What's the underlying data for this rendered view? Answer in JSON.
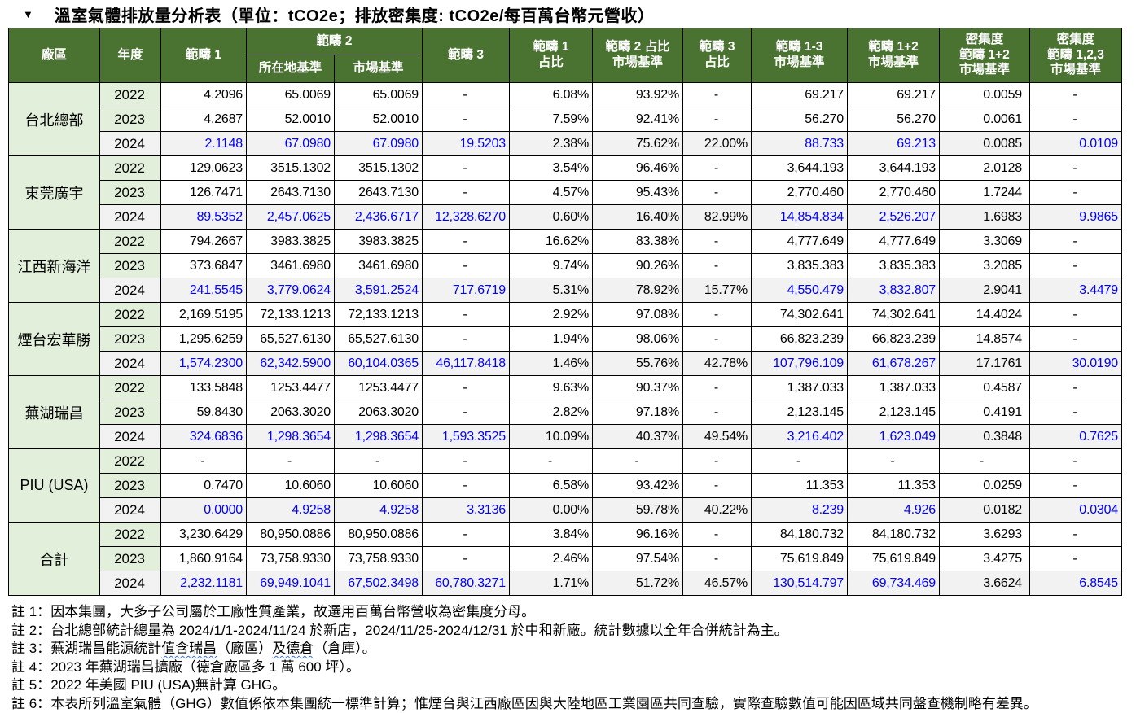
{
  "title": {
    "marker": "▼",
    "text": "溫室氣體排放量分析表（單位：tCO2e；排放密集度: tCO2e/每百萬台幣元營收）"
  },
  "colors": {
    "header_bg": "#4a7230",
    "group_bg": "#e2efda",
    "highlight_row_bg": "#f2f2f2",
    "highlight_text": "#0000ff",
    "border": "#000000"
  },
  "table": {
    "headers": {
      "plant": "廠區",
      "year": "年度",
      "scope1": "範疇 1",
      "scope2": "範疇 2",
      "scope2_location": "所在地基準",
      "scope2_market": "市場基準",
      "scope3": "範疇 3",
      "scope1_pct": "範疇 1\n占比",
      "scope2_pct": "範疇 2 占比\n市場基準",
      "scope3_pct": "範疇 3\n占比",
      "scope123_market": "範疇 1-3\n市場基準",
      "scope12_market": "範疇 1+2\n市場基準",
      "intensity12": "密集度\n範疇 1+2\n市場基準",
      "intensity123": "密集度\n範疇 1,2,3\n市場基準"
    },
    "highlight_cols": [
      0,
      1,
      2,
      3,
      7,
      8,
      10
    ],
    "groups": [
      {
        "plant": "台北總部",
        "rows": [
          {
            "year": "2022",
            "highlight": false,
            "values": [
              "4.2096",
              "65.0069",
              "65.0069",
              "-",
              "6.08%",
              "93.92%",
              "-",
              "69.217",
              "69.217",
              "0.0059",
              "-"
            ]
          },
          {
            "year": "2023",
            "highlight": false,
            "values": [
              "4.2687",
              "52.0010",
              "52.0010",
              "-",
              "7.59%",
              "92.41%",
              "-",
              "56.270",
              "56.270",
              "0.0061",
              "-"
            ]
          },
          {
            "year": "2024",
            "highlight": true,
            "values": [
              "2.1148",
              "67.0980",
              "67.0980",
              "19.5203",
              "2.38%",
              "75.62%",
              "22.00%",
              "88.733",
              "69.213",
              "0.0085",
              "0.0109"
            ]
          }
        ]
      },
      {
        "plant": "東莞廣宇",
        "rows": [
          {
            "year": "2022",
            "highlight": false,
            "values": [
              "129.0623",
              "3515.1302",
              "3515.1302",
              "-",
              "3.54%",
              "96.46%",
              "-",
              "3,644.193",
              "3,644.193",
              "2.0128",
              "-"
            ]
          },
          {
            "year": "2023",
            "highlight": false,
            "values": [
              "126.7471",
              "2643.7130",
              "2643.7130",
              "-",
              "4.57%",
              "95.43%",
              "-",
              "2,770.460",
              "2,770.460",
              "1.7244",
              "-"
            ]
          },
          {
            "year": "2024",
            "highlight": true,
            "values": [
              "89.5352",
              "2,457.0625",
              "2,436.6717",
              "12,328.6270",
              "0.60%",
              "16.40%",
              "82.99%",
              "14,854.834",
              "2,526.207",
              "1.6983",
              "9.9865"
            ]
          }
        ]
      },
      {
        "plant": "江西新海洋",
        "rows": [
          {
            "year": "2022",
            "highlight": false,
            "values": [
              "794.2667",
              "3983.3825",
              "3983.3825",
              "-",
              "16.62%",
              "83.38%",
              "-",
              "4,777.649",
              "4,777.649",
              "3.3069",
              "-"
            ]
          },
          {
            "year": "2023",
            "highlight": false,
            "values": [
              "373.6847",
              "3461.6980",
              "3461.6980",
              "-",
              "9.74%",
              "90.26%",
              "-",
              "3,835.383",
              "3,835.383",
              "3.2085",
              "-"
            ]
          },
          {
            "year": "2024",
            "highlight": true,
            "values": [
              "241.5545",
              "3,779.0624",
              "3,591.2524",
              "717.6719",
              "5.31%",
              "78.92%",
              "15.77%",
              "4,550.479",
              "3,832.807",
              "2.9041",
              "3.4479"
            ]
          }
        ]
      },
      {
        "plant": "煙台宏華勝",
        "rows": [
          {
            "year": "2022",
            "highlight": false,
            "values": [
              "2,169.5195",
              "72,133.1213",
              "72,133.1213",
              "-",
              "2.92%",
              "97.08%",
              "-",
              "74,302.641",
              "74,302.641",
              "14.4024",
              "-"
            ]
          },
          {
            "year": "2023",
            "highlight": false,
            "values": [
              "1,295.6259",
              "65,527.6130",
              "65,527.6130",
              "-",
              "1.94%",
              "98.06%",
              "-",
              "66,823.239",
              "66,823.239",
              "14.8574",
              "-"
            ]
          },
          {
            "year": "2024",
            "highlight": true,
            "values": [
              "1,574.2300",
              "62,342.5900",
              "60,104.0365",
              "46,117.8418",
              "1.46%",
              "55.76%",
              "42.78%",
              "107,796.109",
              "61,678.267",
              "17.1761",
              "30.0190"
            ]
          }
        ]
      },
      {
        "plant": "蕪湖瑞昌",
        "rows": [
          {
            "year": "2022",
            "highlight": false,
            "values": [
              "133.5848",
              "1253.4477",
              "1253.4477",
              "-",
              "9.63%",
              "90.37%",
              "-",
              "1,387.033",
              "1,387.033",
              "0.4587",
              "-"
            ]
          },
          {
            "year": "2023",
            "highlight": false,
            "values": [
              "59.8430",
              "2063.3020",
              "2063.3020",
              "-",
              "2.82%",
              "97.18%",
              "-",
              "2,123.145",
              "2,123.145",
              "0.4191",
              "-"
            ]
          },
          {
            "year": "2024",
            "highlight": true,
            "values": [
              "324.6836",
              "1,298.3654",
              "1,298.3654",
              "1,593.3525",
              "10.09%",
              "40.37%",
              "49.54%",
              "3,216.402",
              "1,623.049",
              "0.3848",
              "0.7625"
            ]
          }
        ]
      },
      {
        "plant": "PIU (USA)",
        "rows": [
          {
            "year": "2022",
            "highlight": false,
            "values": [
              "-",
              "-",
              "-",
              "-",
              "-",
              "-",
              "-",
              "-",
              "-",
              "-",
              "-"
            ]
          },
          {
            "year": "2023",
            "highlight": false,
            "values": [
              "0.7470",
              "10.6060",
              "10.6060",
              "-",
              "6.58%",
              "93.42%",
              "-",
              "11.353",
              "11.353",
              "0.0259",
              "-"
            ]
          },
          {
            "year": "2024",
            "highlight": true,
            "values": [
              "0.0000",
              "4.9258",
              "4.9258",
              "3.3136",
              "0.00%",
              "59.78%",
              "40.22%",
              "8.239",
              "4.926",
              "0.0182",
              "0.0304"
            ]
          }
        ]
      },
      {
        "plant": "合計",
        "rows": [
          {
            "year": "2022",
            "highlight": false,
            "values": [
              "3,230.6429",
              "80,950.0886",
              "80,950.0886",
              "-",
              "3.84%",
              "96.16%",
              "-",
              "84,180.732",
              "84,180.732",
              "3.6293",
              "-"
            ]
          },
          {
            "year": "2023",
            "highlight": false,
            "values": [
              "1,860.9164",
              "73,758.9330",
              "73,758.9330",
              "-",
              "2.46%",
              "97.54%",
              "-",
              "75,619.849",
              "75,619.849",
              "3.4275",
              "-"
            ]
          },
          {
            "year": "2024",
            "highlight": true,
            "values": [
              "2,232.1181",
              "69,949.1041",
              "67,502.3498",
              "60,780.3271",
              "1.71%",
              "51.72%",
              "46.57%",
              "130,514.797",
              "69,734.469",
              "3.6624",
              "6.8545"
            ]
          }
        ]
      }
    ]
  },
  "notes": [
    {
      "label": "註 1：",
      "segments": [
        {
          "t": "因本集團，大多子公司屬於工廠性質產業，故選用百萬台幣營收為密集度分母。",
          "wavy": false
        }
      ]
    },
    {
      "label": "註 2：",
      "segments": [
        {
          "t": "台北總部統計總量為 2024/1/1-2024/11/24 於新店，2024/11/25-2024/12/31 於中和新廠。統計數據以全年合併統計為主。",
          "wavy": false
        }
      ]
    },
    {
      "label": "註 3：",
      "segments": [
        {
          "t": "蕪湖瑞昌能源統計",
          "wavy": false
        },
        {
          "t": "值含瑞昌",
          "wavy": true
        },
        {
          "t": "（廠區）",
          "wavy": false
        },
        {
          "t": "及德倉",
          "wavy": true
        },
        {
          "t": "（倉庫）。",
          "wavy": false
        }
      ]
    },
    {
      "label": "註 4：",
      "segments": [
        {
          "t": "2023 年蕪湖瑞昌擴廠（德倉廠區多 1 萬 600 坪）。",
          "wavy": false
        }
      ]
    },
    {
      "label": "註 5：",
      "segments": [
        {
          "t": "2022 年美國 PIU (USA)無計算 GHG。",
          "wavy": false
        }
      ]
    },
    {
      "label": "註 6：",
      "segments": [
        {
          "t": "本表所列溫室氣體（GHG）數值係依本集團統一標準計算；惟煙台與江西廠區因與大陸地區工業園區共同查驗，實際查驗數值可能因區域共同盤查機制略有差異。",
          "wavy": false
        }
      ]
    }
  ]
}
